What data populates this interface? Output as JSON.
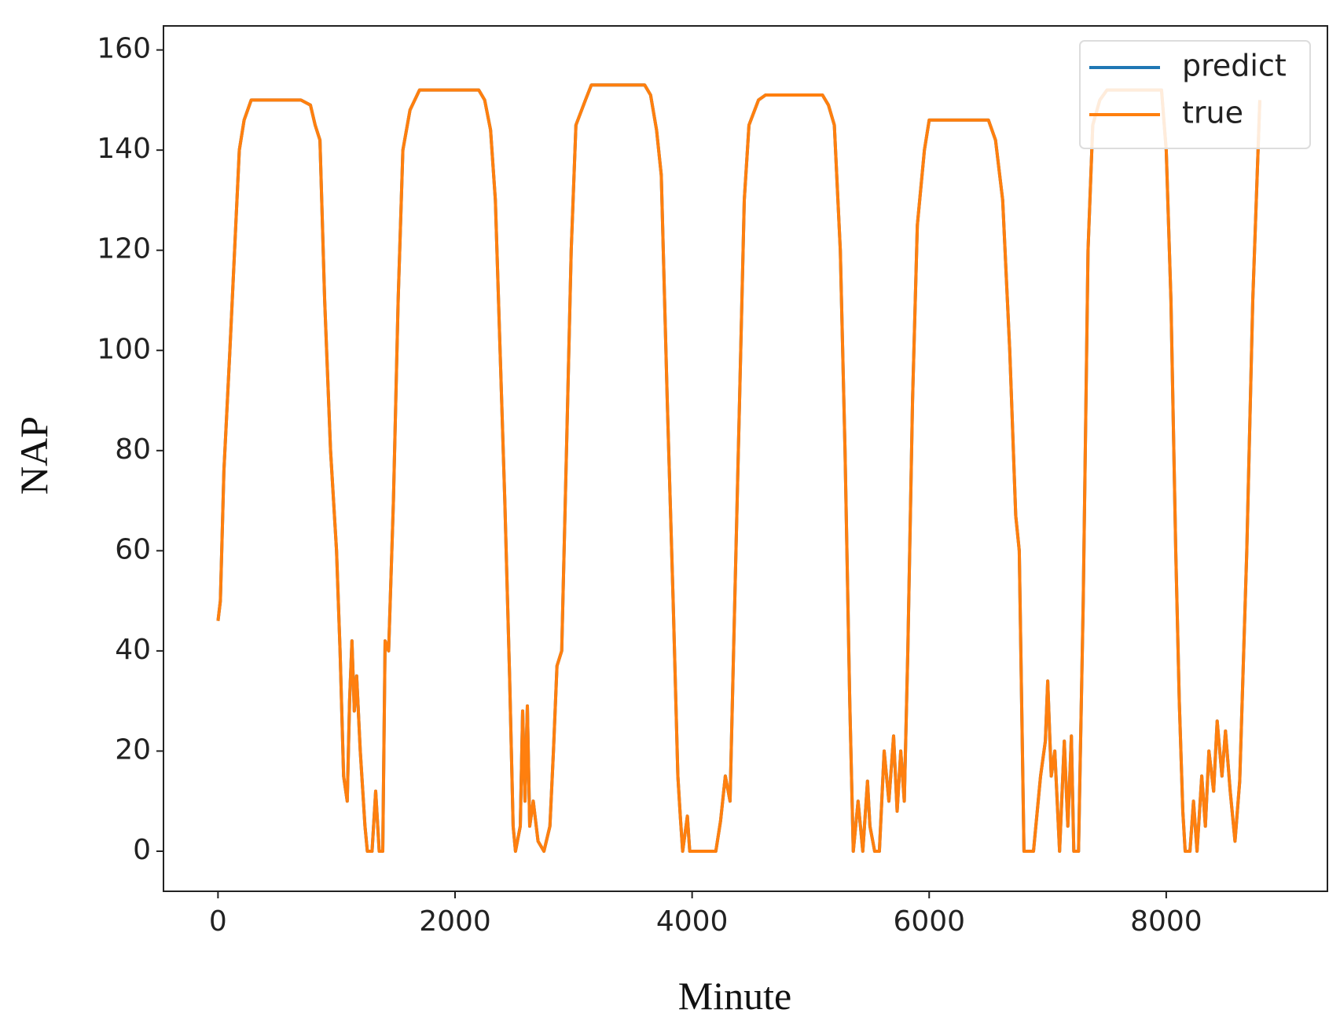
{
  "chart_data": {
    "type": "line",
    "xlabel": "Minute",
    "ylabel": "NAP",
    "x": [
      0,
      20,
      50,
      100,
      150,
      180,
      220,
      280,
      700,
      780,
      820,
      860,
      900,
      950,
      1000,
      1030,
      1060,
      1090,
      1110,
      1130,
      1150,
      1170,
      1200,
      1240,
      1260,
      1300,
      1330,
      1360,
      1390,
      1410,
      1440,
      1480,
      1520,
      1560,
      1620,
      1700,
      2200,
      2250,
      2300,
      2340,
      2380,
      2420,
      2460,
      2490,
      2510,
      2550,
      2570,
      2590,
      2610,
      2630,
      2660,
      2700,
      2750,
      2800,
      2830,
      2860,
      2900,
      2940,
      2980,
      3020,
      3100,
      3150,
      3600,
      3650,
      3700,
      3740,
      3790,
      3840,
      3880,
      3900,
      3920,
      3960,
      3980,
      4200,
      4240,
      4280,
      4320,
      4350,
      4400,
      4440,
      4480,
      4560,
      4620,
      5100,
      5150,
      5200,
      5250,
      5290,
      5330,
      5360,
      5400,
      5440,
      5480,
      5500,
      5540,
      5580,
      5620,
      5660,
      5700,
      5730,
      5760,
      5790,
      5820,
      5860,
      5900,
      5960,
      6000,
      6500,
      6560,
      6620,
      6680,
      6730,
      6760,
      6800,
      6880,
      6940,
      6980,
      7000,
      7030,
      7060,
      7100,
      7140,
      7170,
      7200,
      7220,
      7260,
      7300,
      7340,
      7380,
      7440,
      7500,
      7960,
      8000,
      8040,
      8080,
      8110,
      8140,
      8160,
      8200,
      8230,
      8260,
      8300,
      8330,
      8360,
      8400,
      8430,
      8470,
      8500,
      8540,
      8580,
      8620,
      8680,
      8730,
      8790
    ],
    "series": [
      {
        "name": "predict",
        "color": "#1f77b4",
        "values": [
          46,
          50,
          76,
          100,
          125,
          140,
          146,
          150,
          150,
          149,
          145,
          142,
          110,
          80,
          60,
          40,
          15,
          10,
          30,
          42,
          28,
          35,
          20,
          5,
          0,
          0,
          12,
          0,
          0,
          42,
          40,
          70,
          110,
          140,
          148,
          152,
          152,
          150,
          144,
          130,
          100,
          70,
          35,
          5,
          0,
          5,
          28,
          10,
          29,
          5,
          10,
          2,
          0,
          5,
          20,
          37,
          40,
          80,
          120,
          145,
          150,
          153,
          153,
          151,
          144,
          135,
          90,
          50,
          15,
          7,
          0,
          7,
          0,
          0,
          6,
          15,
          10,
          40,
          90,
          130,
          145,
          150,
          151,
          151,
          149,
          145,
          120,
          80,
          30,
          0,
          10,
          0,
          14,
          5,
          0,
          0,
          20,
          10,
          23,
          8,
          20,
          10,
          40,
          90,
          125,
          140,
          146,
          146,
          142,
          130,
          100,
          67,
          60,
          0,
          0,
          15,
          22,
          34,
          15,
          20,
          0,
          22,
          5,
          23,
          0,
          0,
          50,
          120,
          145,
          150,
          152,
          152,
          140,
          110,
          60,
          30,
          8,
          0,
          0,
          10,
          0,
          15,
          5,
          20,
          12,
          26,
          15,
          24,
          12,
          2,
          14,
          60,
          110,
          150
        ]
      },
      {
        "name": "true",
        "color": "#ff7f0e",
        "values": [
          46,
          50,
          76,
          100,
          125,
          140,
          146,
          150,
          150,
          149,
          145,
          142,
          110,
          80,
          60,
          40,
          15,
          10,
          30,
          42,
          28,
          35,
          20,
          5,
          0,
          0,
          12,
          0,
          0,
          42,
          40,
          70,
          110,
          140,
          148,
          152,
          152,
          150,
          144,
          130,
          100,
          70,
          35,
          5,
          0,
          5,
          28,
          10,
          29,
          5,
          10,
          2,
          0,
          5,
          20,
          37,
          40,
          80,
          120,
          145,
          150,
          153,
          153,
          151,
          144,
          135,
          90,
          50,
          15,
          7,
          0,
          7,
          0,
          0,
          6,
          15,
          10,
          40,
          90,
          130,
          145,
          150,
          151,
          151,
          149,
          145,
          120,
          80,
          30,
          0,
          10,
          0,
          14,
          5,
          0,
          0,
          20,
          10,
          23,
          8,
          20,
          10,
          40,
          90,
          125,
          140,
          146,
          146,
          142,
          130,
          100,
          67,
          60,
          0,
          0,
          15,
          22,
          34,
          15,
          20,
          0,
          22,
          5,
          23,
          0,
          0,
          50,
          120,
          145,
          150,
          152,
          152,
          140,
          110,
          60,
          30,
          8,
          0,
          0,
          10,
          0,
          15,
          5,
          20,
          12,
          26,
          15,
          24,
          12,
          2,
          14,
          60,
          110,
          150
        ]
      }
    ],
    "xlim": [
      -460,
      9360
    ],
    "ylim": [
      -8,
      164.8
    ],
    "xticks": [
      0,
      2000,
      4000,
      6000,
      8000
    ],
    "yticks": [
      0,
      20,
      40,
      60,
      80,
      100,
      120,
      140,
      160
    ],
    "legend": "upper right"
  }
}
